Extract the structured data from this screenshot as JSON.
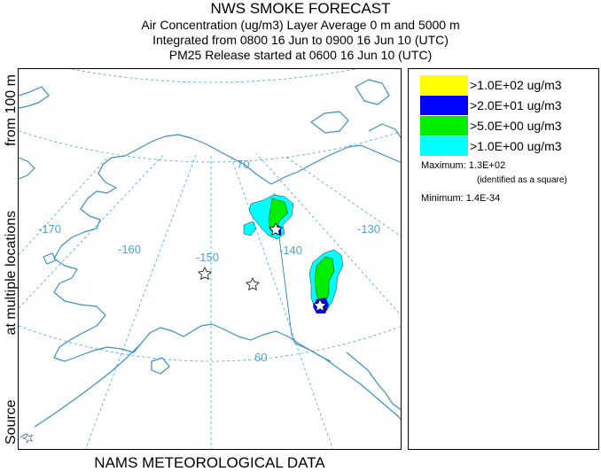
{
  "header": {
    "title": "NWS SMOKE FORECAST",
    "line2": "Air Concentration (ug/m3) Layer Average    0 m and  5000 m",
    "line3": "Integrated from 0800 16 Jun to 0900 16 Jun 10 (UTC)",
    "line4": "PM25 Release started at 0600 16 Jun 10 (UTC)"
  },
  "side_label": {
    "source_text": "Source",
    "at_multiple": "at multiple locations",
    "from_height": "from   100 m"
  },
  "bottom_label": "NAMS METEOROLOGICAL DATA",
  "map": {
    "longitude_labels": [
      "-170",
      "-160",
      "-150",
      "-140",
      "-130"
    ],
    "latitude_labels": [
      "70",
      "60"
    ],
    "graticule_color": "#4aa3d6",
    "coast_color": "#3b8fc4"
  },
  "legend": {
    "items": [
      {
        "label": ">1.0E+02 ug/m3",
        "color": "#ffff00"
      },
      {
        "label": ">2.0E+01 ug/m3",
        "color": "#0000ff"
      },
      {
        "label": ">5.0E+00 ug/m3",
        "color": "#00ee00"
      },
      {
        "label": ">1.0E+00 ug/m3",
        "color": "#00ffff"
      }
    ],
    "maximum_label": "Maximum: 1.3E+02",
    "maximum_note": "(identified as a square)",
    "minimum_label": "Minimum: 1.4E-34"
  }
}
